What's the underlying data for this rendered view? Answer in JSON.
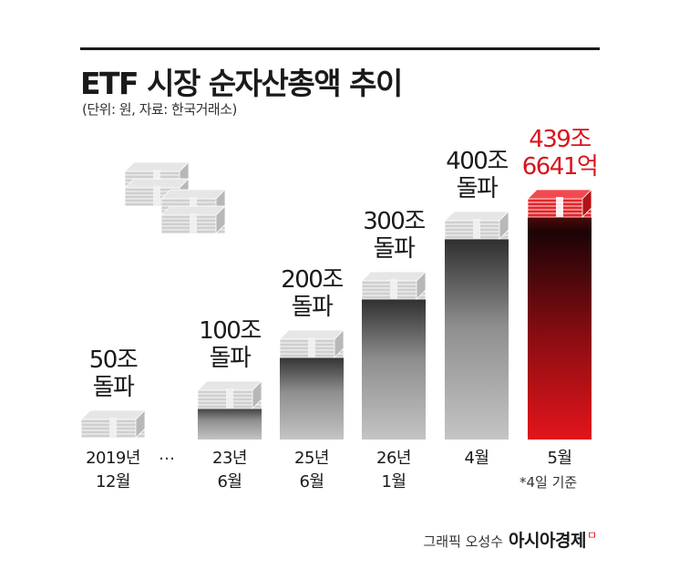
{
  "header": {
    "title": "ETF 시장 순자산총액 추이",
    "subtitle": "(단위: 원, 자료: 한국거래소)"
  },
  "chart_data": {
    "type": "bar",
    "title": "ETF 시장 순자산총액 추이",
    "unit": "원",
    "source": "한국거래소",
    "categories": [
      "2019년 12월",
      "23년 6월",
      "25년 6월",
      "26년 1월",
      "4월",
      "5월"
    ],
    "series": [
      {
        "values": [
          50,
          100,
          200,
          300,
          400,
          439.6641
        ]
      }
    ],
    "value_labels": [
      [
        "50조",
        "돌파"
      ],
      [
        "100조",
        "돌파"
      ],
      [
        "200조",
        "돌파"
      ],
      [
        "300조",
        "돌파"
      ],
      [
        "400조",
        "돌파"
      ],
      [
        "439조",
        "6641억"
      ]
    ],
    "category_labels": [
      [
        "2019년",
        "12월"
      ],
      [
        "23년",
        "6월"
      ],
      [
        "25년",
        "6월"
      ],
      [
        "26년",
        "1월"
      ],
      [
        "4월"
      ],
      [
        "5월"
      ]
    ],
    "axis_break": "…",
    "highlight_index": 5,
    "colors": {
      "bar": "#9a9a9a",
      "bar_dark": "#2a2a2a",
      "highlight": "#d9141c",
      "highlight_dark": "#2a0a0a"
    }
  },
  "footnote": "*4일 기준",
  "credit": {
    "text": "그래픽 오성수",
    "brand": "아시아경제",
    "brand_mark": "ㅁ"
  }
}
